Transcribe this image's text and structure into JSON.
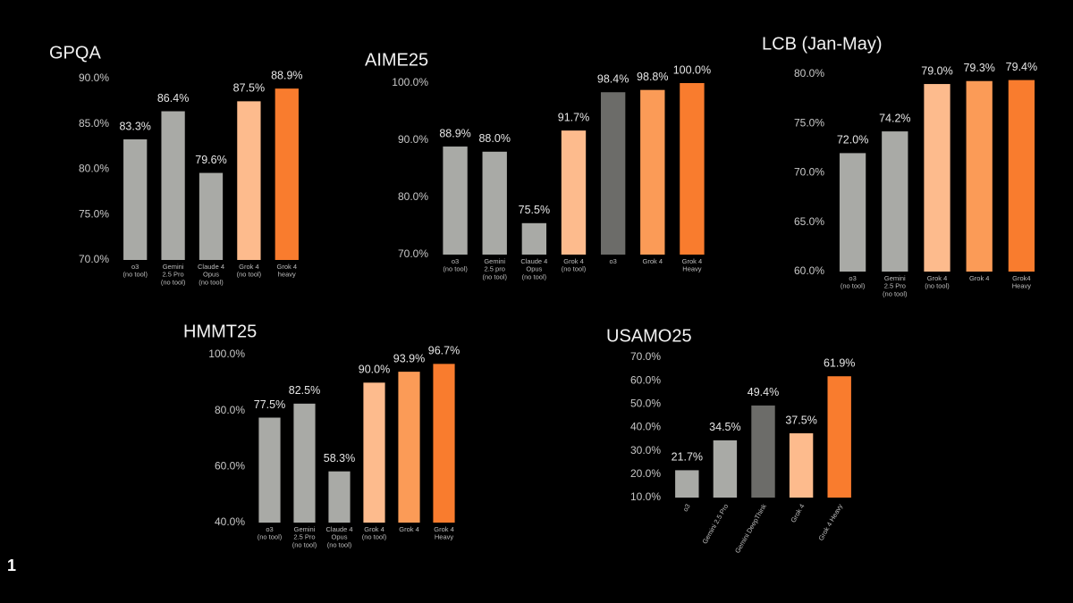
{
  "slide_marker": "1",
  "chart_data": [
    {
      "type": "bar",
      "title": "GPQA",
      "categories": [
        "o3\n(no tool)",
        "Gemini\n2.5 Pro\n(no tool)",
        "Claude 4\nOpus\n(no tool)",
        "Grok 4\n(no tool)",
        "Grok 4\nheavy"
      ],
      "values": [
        83.3,
        86.4,
        79.6,
        87.5,
        88.9
      ],
      "value_labels": [
        "83.3%",
        "86.4%",
        "79.6%",
        "87.5%",
        "88.9%"
      ],
      "colors": [
        "#a9aaa6",
        "#a9aaa6",
        "#a9aaa6",
        "#fdbb8d",
        "#f97c2e"
      ],
      "ylim": [
        70,
        90
      ],
      "yticks": [
        {
          "value": 70,
          "label": "70.0%"
        },
        {
          "value": 75,
          "label": "75.0%"
        },
        {
          "value": 80,
          "label": "80.0%"
        },
        {
          "value": 85,
          "label": "85.0%"
        },
        {
          "value": 90,
          "label": "90.0%"
        }
      ]
    },
    {
      "type": "bar",
      "title": "AIME25",
      "categories": [
        "o3\n(no tool)",
        "Gemini\n2.5 pro\n(no tool)",
        "Claude 4\nOpus\n(no tool)",
        "Grok 4\n(no tool)",
        "o3",
        "Grok 4",
        "Grok 4\nHeavy"
      ],
      "values": [
        88.9,
        88.0,
        75.5,
        91.7,
        98.4,
        98.8,
        100.0
      ],
      "value_labels": [
        "88.9%",
        "88.0%",
        "75.5%",
        "91.7%",
        "98.4%",
        "98.8%",
        "100.0%"
      ],
      "colors": [
        "#a9aaa6",
        "#a9aaa6",
        "#a9aaa6",
        "#fdbb8d",
        "#6c6c69",
        "#fb9b57",
        "#f97c2e"
      ],
      "ylim": [
        70,
        100
      ],
      "yticks": [
        {
          "value": 70,
          "label": "70.0%"
        },
        {
          "value": 80,
          "label": "80.0%"
        },
        {
          "value": 90,
          "label": "90.0%"
        },
        {
          "value": 100,
          "label": "100.0%"
        }
      ]
    },
    {
      "type": "bar",
      "title": "LCB (Jan-May)",
      "categories": [
        "o3\n(no tool)",
        "Gemini\n2.5 Pro\n(no tool)",
        "Grok 4\n(no tool)",
        "Grok 4",
        "Grok4\nHeavy"
      ],
      "values": [
        72.0,
        74.2,
        79.0,
        79.3,
        79.4
      ],
      "value_labels": [
        "72.0%",
        "74.2%",
        "79.0%",
        "79.3%",
        "79.4%"
      ],
      "colors": [
        "#a9aaa6",
        "#a9aaa6",
        "#fdbb8d",
        "#fb9b57",
        "#f97c2e"
      ],
      "ylim": [
        60,
        80
      ],
      "yticks": [
        {
          "value": 60,
          "label": "60.0%"
        },
        {
          "value": 65,
          "label": "65.0%"
        },
        {
          "value": 70,
          "label": "70.0%"
        },
        {
          "value": 75,
          "label": "75.0%"
        },
        {
          "value": 80,
          "label": "80.0%"
        }
      ]
    },
    {
      "type": "bar",
      "title": "HMMT25",
      "categories": [
        "o3\n(no tool)",
        "Gemini\n2.5 Pro\n(no tool)",
        "Claude 4\nOpus\n(no tool)",
        "Grok 4\n(no tool)",
        "Grok 4",
        "Grok 4\nHeavy"
      ],
      "values": [
        77.5,
        82.5,
        58.3,
        90.0,
        93.9,
        96.7
      ],
      "value_labels": [
        "77.5%",
        "82.5%",
        "58.3%",
        "90.0%",
        "93.9%",
        "96.7%"
      ],
      "colors": [
        "#a9aaa6",
        "#a9aaa6",
        "#a9aaa6",
        "#fdbb8d",
        "#fb9b57",
        "#f97c2e"
      ],
      "ylim": [
        40,
        100
      ],
      "yticks": [
        {
          "value": 40,
          "label": "40.0%"
        },
        {
          "value": 60,
          "label": "60.0%"
        },
        {
          "value": 80,
          "label": "80.0%"
        },
        {
          "value": 100,
          "label": "100.0%"
        }
      ]
    },
    {
      "type": "bar",
      "title": "USAMO25",
      "categories": [
        "o3",
        "Gemini 2.5 Pro",
        "Gemini DeepThink",
        "Grok 4",
        "Grok 4 Heavy"
      ],
      "values": [
        21.7,
        34.5,
        49.4,
        37.5,
        61.9
      ],
      "value_labels": [
        "21.7%",
        "34.5%",
        "49.4%",
        "37.5%",
        "61.9%"
      ],
      "colors": [
        "#a9aaa6",
        "#a9aaa6",
        "#6c6c69",
        "#fdbb8d",
        "#f97c2e"
      ],
      "ylim": [
        10,
        70
      ],
      "yticks": [
        {
          "value": 10,
          "label": "10.0%"
        },
        {
          "value": 20,
          "label": "20.0%"
        },
        {
          "value": 30,
          "label": "30.0%"
        },
        {
          "value": 40,
          "label": "40.0%"
        },
        {
          "value": 50,
          "label": "50.0%"
        },
        {
          "value": 60,
          "label": "60.0%"
        },
        {
          "value": 70,
          "label": "70.0%"
        }
      ]
    }
  ]
}
